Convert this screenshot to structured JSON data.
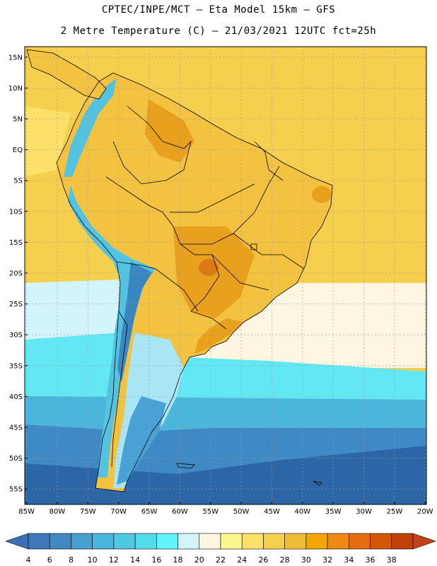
{
  "header": {
    "line1": "CPTEC/INPE/MCT –  Eta Model 15km – GFS",
    "line2": "2 Metre Temperature (C) – 21/03/2021 12UTC fct=25h"
  },
  "axes": {
    "lat_labels": [
      "15N",
      "10N",
      "5N",
      "EQ",
      "5S",
      "10S",
      "15S",
      "20S",
      "25S",
      "30S",
      "35S",
      "40S",
      "45S",
      "50S",
      "55S"
    ],
    "lat_values": [
      15,
      10,
      5,
      0,
      -5,
      -10,
      -15,
      -20,
      -25,
      -30,
      -35,
      -40,
      -45,
      -50,
      -55
    ],
    "lon_labels": [
      "85W",
      "80W",
      "75W",
      "70W",
      "65W",
      "60W",
      "55W",
      "50W",
      "45W",
      "40W",
      "35W",
      "30W",
      "25W",
      "20W"
    ],
    "lon_values": [
      -85,
      -80,
      -75,
      -70,
      -65,
      -60,
      -55,
      -50,
      -45,
      -40,
      -35,
      -30,
      -25,
      -20
    ],
    "lon_range": [
      -85.3,
      -19.8
    ],
    "lat_range": [
      -57.5,
      16.7
    ]
  },
  "colorbar": {
    "labels": [
      "4",
      "6",
      "8",
      "10",
      "12",
      "14",
      "16",
      "18",
      "20",
      "22",
      "24",
      "26",
      "28",
      "30",
      "32",
      "34",
      "36",
      "38"
    ],
    "low_color": "#3e6fb5",
    "high_color": "#c4421a",
    "colors": [
      "#3e78b8",
      "#4289c4",
      "#48a0d0",
      "#4ab6db",
      "#50c8e3",
      "#55dcec",
      "#62f4fb",
      "#d4f4fb",
      "#fff6e2",
      "#fef68e",
      "#fce06a",
      "#f6cf4f",
      "#efbd33",
      "#f3a704",
      "#ec8a16",
      "#e46d10",
      "#d35707",
      "#c04208"
    ]
  },
  "map_colors": {
    "ocean_far_south": "#2d66a6",
    "ocean_south": "#3f8ac4",
    "ocean_mid": "#4ab6db",
    "ocean_cool": "#62e8f5",
    "ocean_pale": "#d4f4fb",
    "ocean_cream": "#fff6e2",
    "ocean_warm": "#fce06a",
    "ocean_tropical": "#f6cf4f",
    "land": "#f3c240",
    "land_hot": "#e9a11d",
    "hot_spot": "#d97a12",
    "andes_cold": "#3a86c0",
    "andes_mid": "#55c3e0",
    "andes_pale": "#a8e6f5",
    "patagonia": "#49a2d3",
    "border": "#000000",
    "grid": "#9a9a9a"
  }
}
